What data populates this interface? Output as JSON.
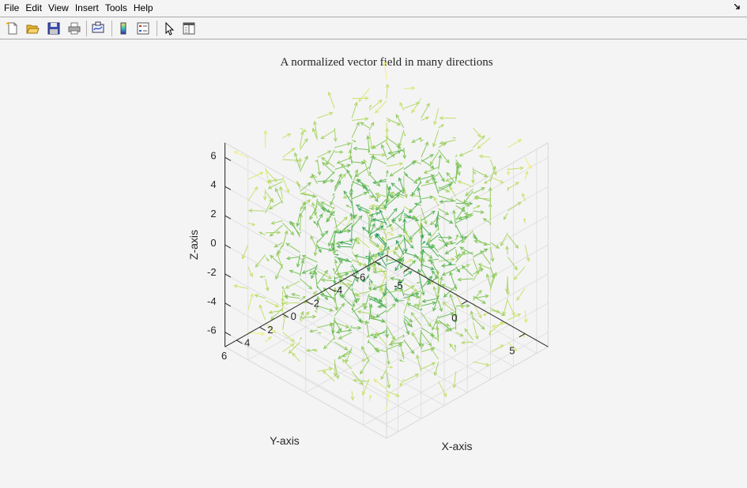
{
  "menu": {
    "items": [
      "File",
      "Edit",
      "View",
      "Insert",
      "Tools",
      "Help"
    ]
  },
  "toolbar": {
    "buttons": [
      "new-figure",
      "open-file",
      "save-figure",
      "print-figure",
      "link-plot",
      "insert-colorbar",
      "insert-legend",
      "edit-plot",
      "open-property-inspector"
    ]
  },
  "chart_data": {
    "type": "quiver3",
    "title": "A normalized vector field in many directions",
    "xlabel": "X-axis",
    "ylabel": "Y-axis",
    "zlabel": "Z-axis",
    "x_ticks": [
      -5,
      0,
      5
    ],
    "y_ticks": [
      -6,
      -4,
      -2,
      0,
      2,
      4,
      6
    ],
    "z_ticks": [
      -6,
      -4,
      -2,
      0,
      2,
      4,
      6
    ],
    "xlim": [
      -7,
      7
    ],
    "ylim": [
      -7,
      7
    ],
    "zlim": [
      -7,
      7
    ],
    "grid": true,
    "grid_range": [
      -6,
      6
    ],
    "grid_step": 1.5,
    "arrow_length": 1,
    "color_by": "distance from origin",
    "colors": {
      "near": "#1e9a6a",
      "mid": "#6cbd58",
      "far": "#f0f07a"
    }
  }
}
